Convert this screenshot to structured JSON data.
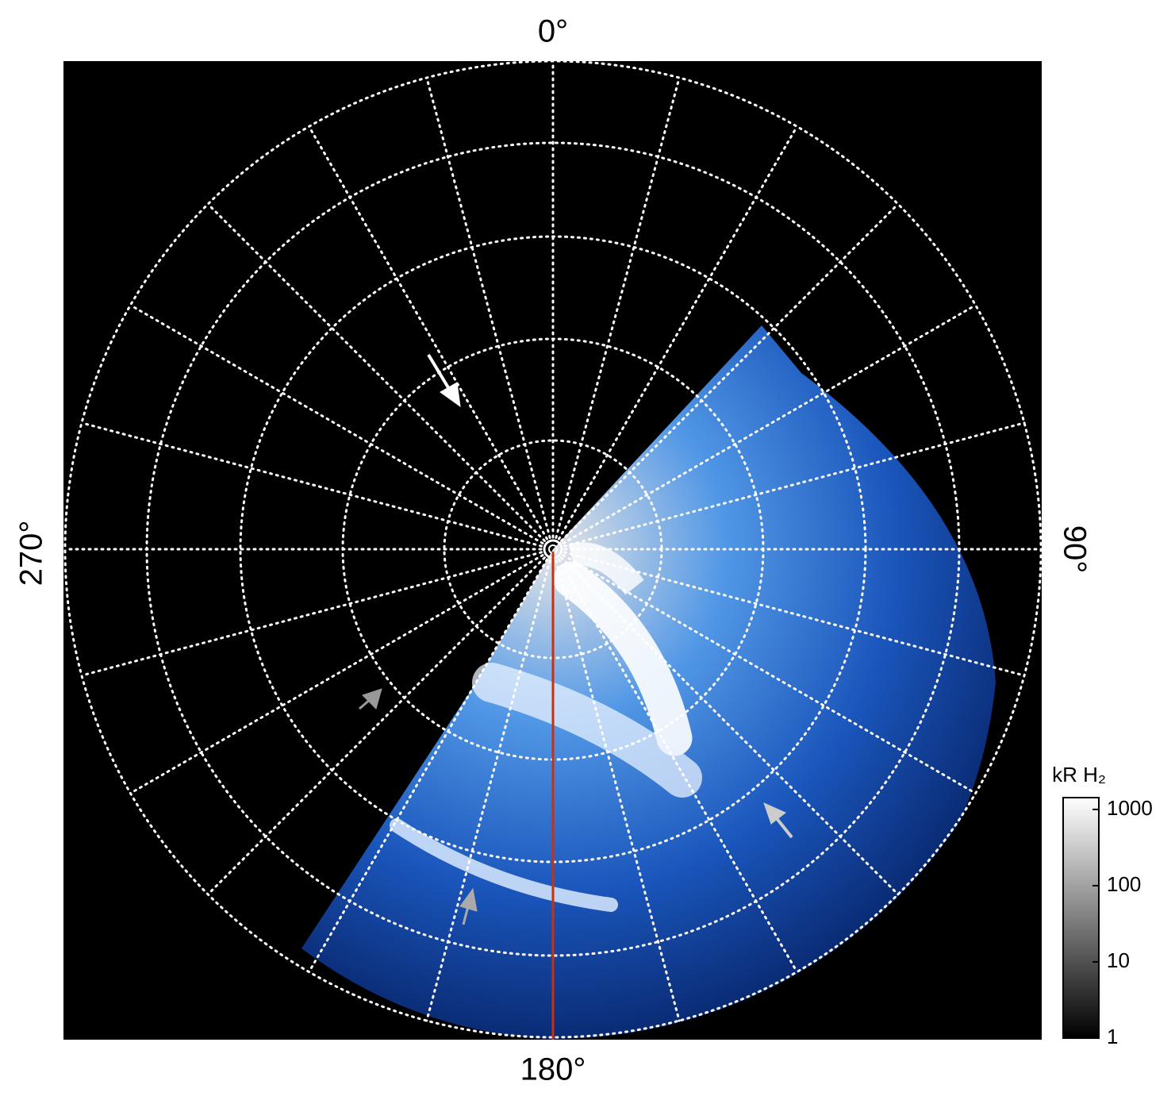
{
  "labels": {
    "top": "0°",
    "right": "90°",
    "bottom": "180°",
    "left": "270°"
  },
  "colorbar": {
    "title": "kR H₂",
    "scale": "log",
    "lim": [
      1,
      1430
    ],
    "ticks": [
      1,
      10,
      100,
      1000
    ]
  }
}
